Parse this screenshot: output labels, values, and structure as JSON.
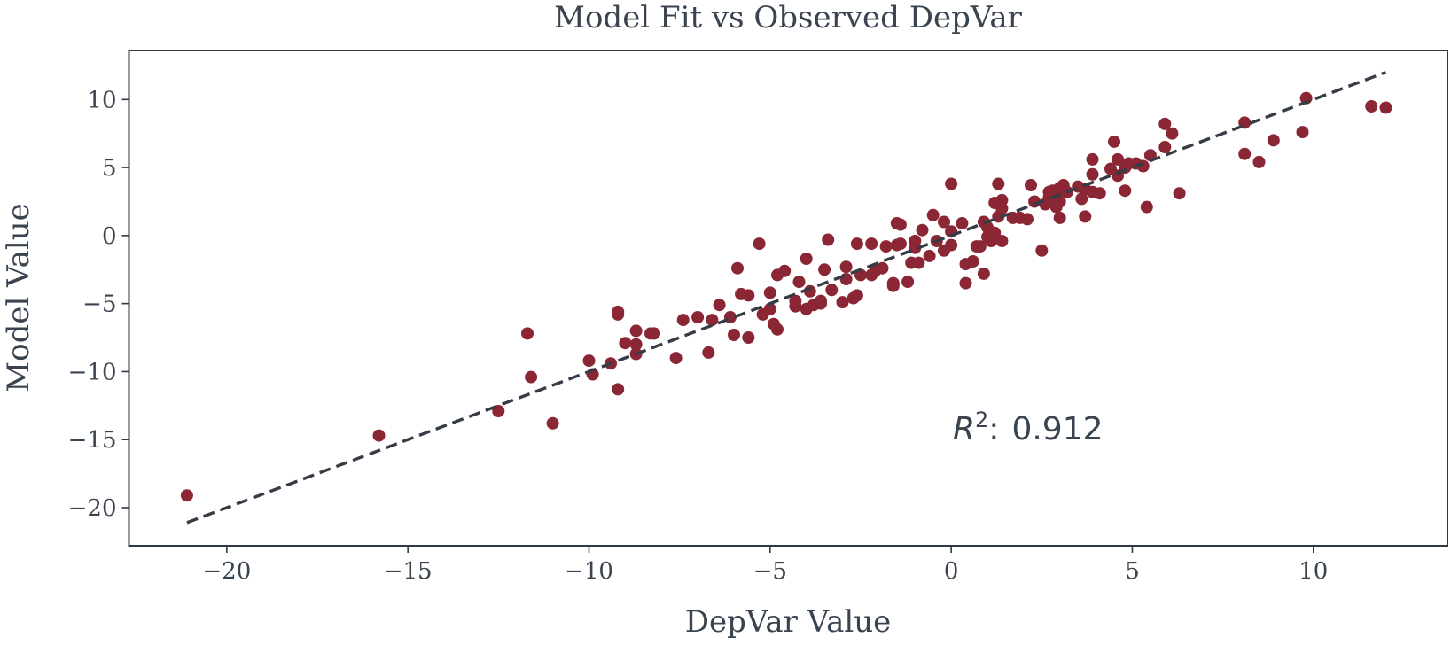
{
  "chart_data": {
    "type": "scatter",
    "title": "Model Fit vs Observed DepVar",
    "xlabel": "DepVar Value",
    "ylabel": "Model Value",
    "xlim": [
      -22.7,
      13.7
    ],
    "ylim": [
      -22.8,
      13.6
    ],
    "xticks": [
      -20,
      -15,
      -10,
      -5,
      0,
      5,
      10
    ],
    "yticks": [
      -20,
      -15,
      -10,
      -5,
      0,
      5,
      10
    ],
    "xtick_labels": [
      "−20",
      "−15",
      "−10",
      "−5",
      "0",
      "5",
      "10"
    ],
    "ytick_labels": [
      "−20",
      "−15",
      "−10",
      "−5",
      "0",
      "5",
      "10"
    ],
    "grid": false,
    "fit_line": {
      "x": [
        -21.1,
        12.0
      ],
      "y": [
        -21.1,
        12.0
      ],
      "style": "dashed"
    },
    "annotation": {
      "label": "R",
      "superscript": "2",
      "separator": ":",
      "value": "0.912"
    },
    "colors": {
      "points": "#8b2635",
      "line": "#353c45",
      "text": "#3a4450"
    },
    "points": [
      [
        -21.1,
        -19.1
      ],
      [
        -15.8,
        -14.7
      ],
      [
        -12.5,
        -12.9
      ],
      [
        -11.7,
        -7.2
      ],
      [
        -11.6,
        -10.4
      ],
      [
        -11.0,
        -13.8
      ],
      [
        -10.0,
        -9.2
      ],
      [
        -9.9,
        -10.2
      ],
      [
        -9.4,
        -9.4
      ],
      [
        -9.2,
        -5.6
      ],
      [
        -9.2,
        -5.8
      ],
      [
        -9.2,
        -11.3
      ],
      [
        -9.0,
        -7.9
      ],
      [
        -8.7,
        -7.0
      ],
      [
        -8.7,
        -8.0
      ],
      [
        -8.7,
        -8.7
      ],
      [
        -8.3,
        -7.2
      ],
      [
        -8.2,
        -7.2
      ],
      [
        -7.6,
        -9.0
      ],
      [
        -7.4,
        -6.2
      ],
      [
        -7.0,
        -6.0
      ],
      [
        -6.7,
        -8.6
      ],
      [
        -6.6,
        -6.2
      ],
      [
        -6.4,
        -5.1
      ],
      [
        -6.1,
        -6.0
      ],
      [
        -6.0,
        -7.3
      ],
      [
        -5.9,
        -2.4
      ],
      [
        -5.8,
        -4.3
      ],
      [
        -5.6,
        -4.4
      ],
      [
        -5.6,
        -7.5
      ],
      [
        -5.3,
        -0.6
      ],
      [
        -5.2,
        -5.8
      ],
      [
        -5.0,
        -5.4
      ],
      [
        -5.0,
        -4.2
      ],
      [
        -4.9,
        -6.5
      ],
      [
        -4.8,
        -6.9
      ],
      [
        -4.8,
        -2.9
      ],
      [
        -4.6,
        -2.6
      ],
      [
        -4.3,
        -4.8
      ],
      [
        -4.3,
        -5.2
      ],
      [
        -4.2,
        -3.4
      ],
      [
        -4.0,
        -5.4
      ],
      [
        -4.0,
        -1.7
      ],
      [
        -3.9,
        -4.1
      ],
      [
        -3.8,
        -5.1
      ],
      [
        -3.6,
        -5.0
      ],
      [
        -3.6,
        -4.8
      ],
      [
        -3.5,
        -2.5
      ],
      [
        -3.4,
        -0.3
      ],
      [
        -3.3,
        -4.0
      ],
      [
        -3.0,
        -4.9
      ],
      [
        -2.9,
        -2.3
      ],
      [
        -2.9,
        -3.2
      ],
      [
        -2.7,
        -4.6
      ],
      [
        -2.6,
        -4.4
      ],
      [
        -2.6,
        -0.6
      ],
      [
        -2.5,
        -2.9
      ],
      [
        -2.2,
        -2.9
      ],
      [
        -2.2,
        -0.6
      ],
      [
        -2.1,
        -2.6
      ],
      [
        -1.9,
        -2.4
      ],
      [
        -1.8,
        -0.8
      ],
      [
        -1.6,
        -3.7
      ],
      [
        -1.6,
        -3.5
      ],
      [
        -1.5,
        0.9
      ],
      [
        -1.5,
        -0.7
      ],
      [
        -1.4,
        0.8
      ],
      [
        -1.4,
        -0.6
      ],
      [
        -1.2,
        -3.4
      ],
      [
        -1.1,
        -2.0
      ],
      [
        -1.0,
        -0.4
      ],
      [
        -1.0,
        -0.9
      ],
      [
        -0.9,
        -2.0
      ],
      [
        -0.8,
        0.4
      ],
      [
        -0.6,
        -1.5
      ],
      [
        -0.5,
        1.5
      ],
      [
        -0.4,
        -0.4
      ],
      [
        -0.2,
        1.0
      ],
      [
        -0.2,
        -1.1
      ],
      [
        0.0,
        3.8
      ],
      [
        0.0,
        0.3
      ],
      [
        0.0,
        -0.7
      ],
      [
        0.3,
        0.9
      ],
      [
        0.4,
        -2.1
      ],
      [
        0.4,
        -3.5
      ],
      [
        0.6,
        -1.9
      ],
      [
        0.7,
        -0.8
      ],
      [
        0.8,
        -0.8
      ],
      [
        0.9,
        1.0
      ],
      [
        0.9,
        -2.8
      ],
      [
        1.0,
        0.6
      ],
      [
        1.0,
        -0.1
      ],
      [
        1.1,
        -0.4
      ],
      [
        1.1,
        0.1
      ],
      [
        1.2,
        0.2
      ],
      [
        1.2,
        2.4
      ],
      [
        1.3,
        3.8
      ],
      [
        1.3,
        1.4
      ],
      [
        1.4,
        2.6
      ],
      [
        1.4,
        2.0
      ],
      [
        1.4,
        -0.4
      ],
      [
        1.7,
        1.3
      ],
      [
        1.9,
        1.3
      ],
      [
        2.1,
        1.2
      ],
      [
        2.2,
        3.7
      ],
      [
        2.3,
        2.5
      ],
      [
        2.5,
        -1.1
      ],
      [
        2.6,
        2.3
      ],
      [
        2.7,
        2.8
      ],
      [
        2.7,
        3.2
      ],
      [
        2.8,
        3.3
      ],
      [
        2.8,
        2.6
      ],
      [
        2.9,
        2.1
      ],
      [
        2.9,
        3.1
      ],
      [
        3.0,
        3.5
      ],
      [
        3.0,
        1.3
      ],
      [
        3.0,
        2.5
      ],
      [
        3.1,
        3.7
      ],
      [
        3.2,
        3.2
      ],
      [
        3.5,
        3.6
      ],
      [
        3.6,
        2.7
      ],
      [
        3.7,
        3.4
      ],
      [
        3.7,
        1.4
      ],
      [
        3.9,
        3.2
      ],
      [
        3.9,
        4.5
      ],
      [
        3.9,
        5.6
      ],
      [
        4.1,
        3.1
      ],
      [
        4.4,
        4.9
      ],
      [
        4.5,
        6.9
      ],
      [
        4.6,
        5.6
      ],
      [
        4.6,
        4.4
      ],
      [
        4.8,
        5.0
      ],
      [
        4.8,
        3.3
      ],
      [
        4.9,
        5.3
      ],
      [
        5.1,
        5.3
      ],
      [
        5.3,
        5.1
      ],
      [
        5.4,
        2.1
      ],
      [
        5.5,
        5.9
      ],
      [
        5.9,
        6.5
      ],
      [
        5.9,
        8.2
      ],
      [
        6.1,
        7.5
      ],
      [
        6.3,
        3.1
      ],
      [
        8.1,
        8.3
      ],
      [
        8.1,
        6.0
      ],
      [
        8.5,
        5.4
      ],
      [
        8.9,
        7.0
      ],
      [
        9.7,
        7.6
      ],
      [
        9.8,
        10.1
      ],
      [
        11.6,
        9.5
      ],
      [
        12.0,
        9.4
      ]
    ]
  }
}
